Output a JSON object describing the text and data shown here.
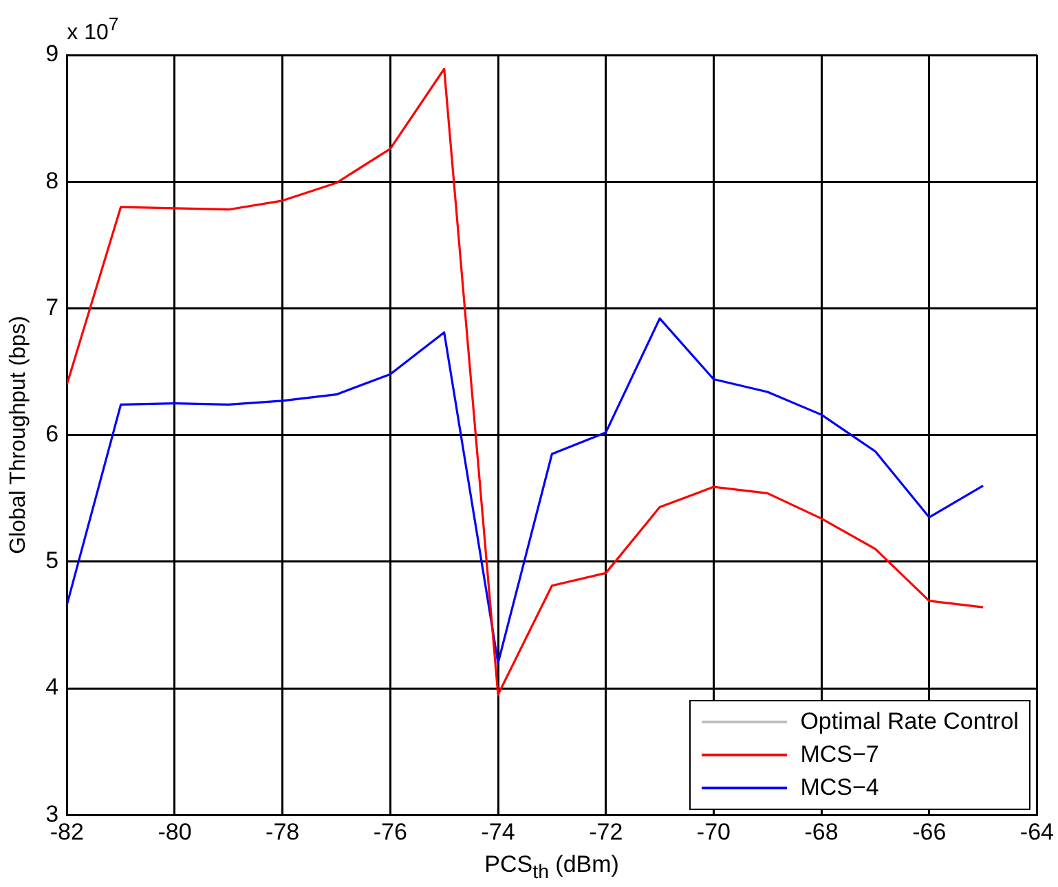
{
  "chart_data": {
    "type": "line",
    "xlabel": "PCS$_{th}$ (dBm)",
    "ylabel": "Global Throughput (bps)",
    "annotations": [
      "x 10$^{7}$"
    ],
    "x": [
      -82,
      -81,
      -80,
      -79,
      -78,
      -77,
      -76,
      -75,
      -74,
      -73,
      -72,
      -71,
      -70,
      -69,
      -68,
      -67,
      -66,
      -65
    ],
    "series": [
      {
        "name": "Optimal Rate Control",
        "color": "#bfbfbf",
        "values": [
          null,
          null,
          null,
          null,
          null,
          null,
          null,
          null,
          null,
          null,
          null,
          null,
          null,
          null,
          null,
          null,
          null,
          null
        ]
      },
      {
        "name": "MCS−7",
        "color": "#ff0000",
        "values": [
          6.4,
          7.8,
          7.79,
          7.78,
          7.85,
          7.99,
          8.26,
          8.89,
          3.95,
          4.81,
          4.91,
          5.43,
          5.59,
          5.54,
          5.34,
          5.1,
          4.69,
          4.64
        ]
      },
      {
        "name": "MCS−4",
        "color": "#0000ff",
        "values": [
          4.66,
          6.24,
          6.25,
          6.24,
          6.27,
          6.32,
          6.48,
          6.81,
          4.2,
          5.85,
          6.02,
          6.92,
          6.44,
          6.34,
          6.16,
          5.87,
          5.35,
          5.6
        ]
      }
    ],
    "xlim": [
      -82,
      -64
    ],
    "xticks": [
      -82,
      -80,
      -78,
      -76,
      -74,
      -72,
      -70,
      -68,
      -66,
      -64
    ],
    "ylim": [
      3,
      9
    ],
    "yticks": [
      3,
      4,
      5,
      6,
      7,
      8,
      9
    ],
    "grid": true,
    "legend": "bottom right",
    "marker": "none",
    "line_style": "solid"
  }
}
